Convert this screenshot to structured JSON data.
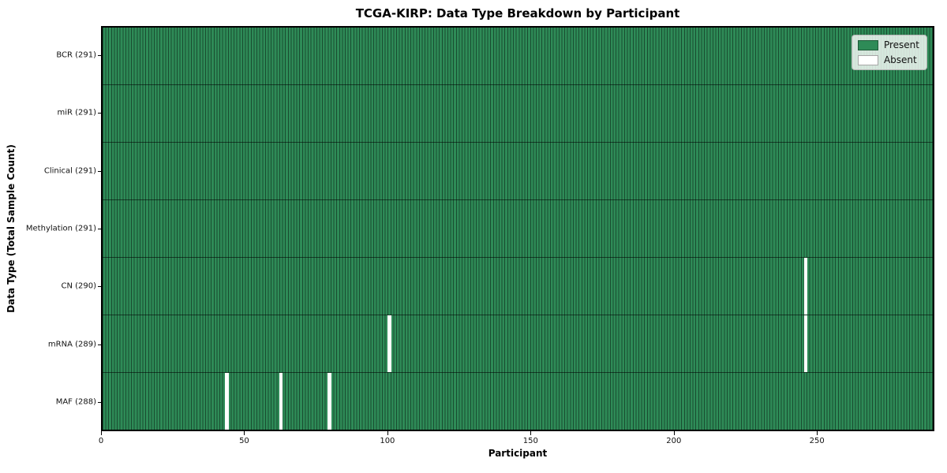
{
  "title": "TCGA-KIRP: Data Type Breakdown by Participant",
  "chart_data": {
    "type": "heatmap",
    "title": "TCGA-KIRP: Data Type Breakdown by Participant",
    "xlabel": "Participant",
    "ylabel": "Data Type (Total Sample Count)",
    "xlim": [
      0,
      291
    ],
    "x_ticks": [
      0,
      50,
      100,
      150,
      200,
      250
    ],
    "n_participants": 291,
    "grid": false,
    "legend_position": "upper right",
    "rows": [
      {
        "name": "BCR",
        "label": "BCR (291)",
        "total": 291,
        "absent_participants": []
      },
      {
        "name": "miR",
        "label": "miR (291)",
        "total": 291,
        "absent_participants": []
      },
      {
        "name": "Clinical",
        "label": "Clinical (291)",
        "total": 291,
        "absent_participants": []
      },
      {
        "name": "Methylation",
        "label": "Methylation (291)",
        "total": 291,
        "absent_participants": []
      },
      {
        "name": "CN",
        "label": "CN (290)",
        "total": 290,
        "absent_participants": [
          246
        ]
      },
      {
        "name": "mRNA",
        "label": "mRNA (289)",
        "total": 289,
        "absent_participants": [
          100,
          246
        ]
      },
      {
        "name": "MAF",
        "label": "MAF (288)",
        "total": 288,
        "absent_participants": [
          43,
          62,
          79
        ]
      }
    ],
    "legend": [
      {
        "label": "Present",
        "color": "#2e8b57"
      },
      {
        "label": "Absent",
        "color": "#ffffff"
      }
    ],
    "colors": {
      "present": "#2e8b57",
      "absent": "#ffffff",
      "bar_edge": "#1c5434",
      "axis": "#000000"
    }
  }
}
